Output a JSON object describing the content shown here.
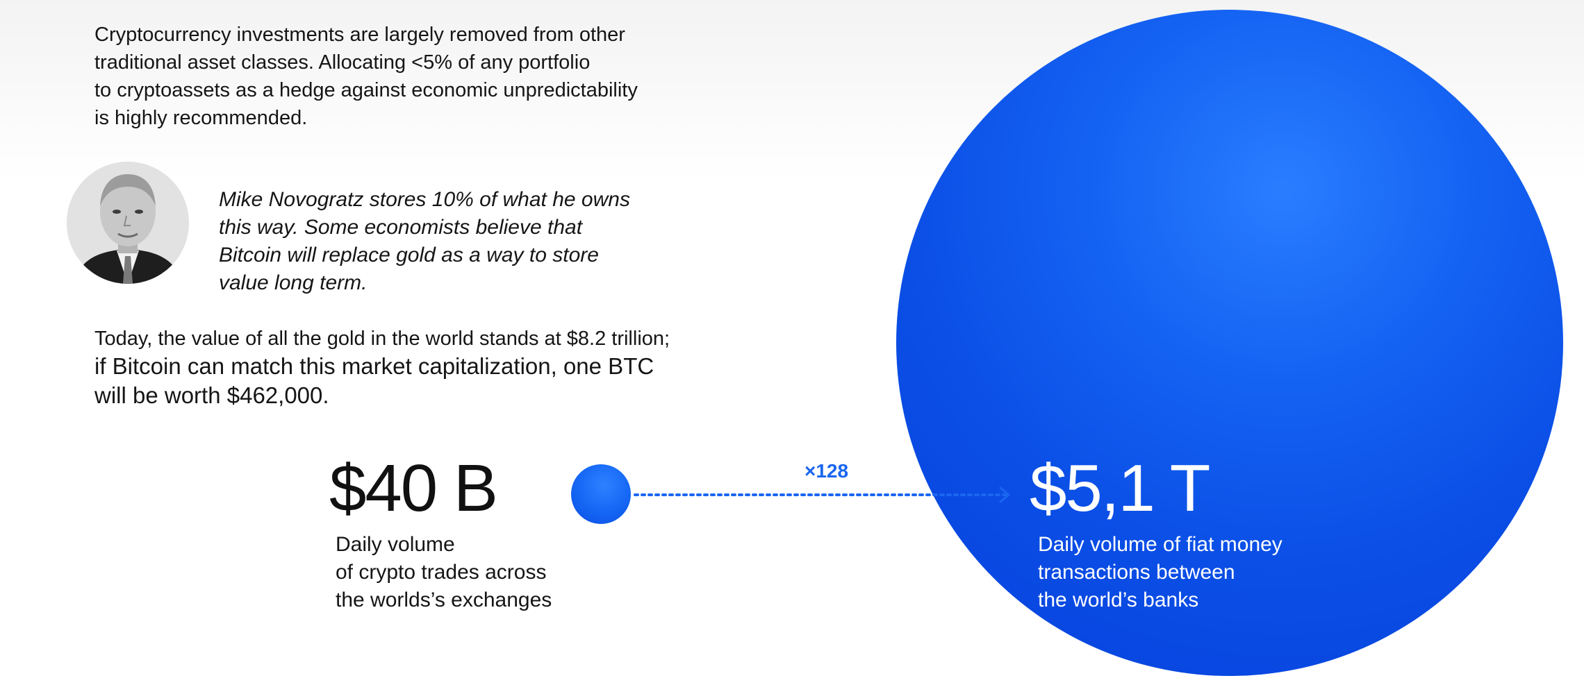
{
  "intro": {
    "lines": [
      "Cryptocurrency investments are largely removed from other",
      "traditional asset classes. Allocating <5% of any portfolio",
      "to cryptoassets as a hedge against economic unpredictability",
      "is highly recommended."
    ]
  },
  "quote": {
    "avatar_icon": "portrait-photo-icon",
    "lines": [
      "Mike Novogratz stores 10% of what he owns",
      "this way. Some economists believe that",
      "Bitcoin will replace gold as a way to store",
      "value long term."
    ]
  },
  "gold": {
    "lines": [
      "Today, the value of all the gold in the world stands at $8.2 trillion;",
      "if Bitcoin can match this market capitalization, one BTC",
      "will be worth $462,000."
    ]
  },
  "comparison": {
    "crypto": {
      "amount": "$40 B",
      "caption": [
        "Daily volume",
        "of crypto trades across",
        "the worlds’s exchanges"
      ]
    },
    "multiplier": "×128",
    "fiat": {
      "amount": "$5,1 T",
      "caption": [
        "Daily volume of fiat money",
        "transactions between",
        "the world’s banks"
      ]
    },
    "colors": {
      "accent": "#1a66f0",
      "circle_dark": "#0640dc",
      "circle_light": "#2a7dff"
    }
  }
}
